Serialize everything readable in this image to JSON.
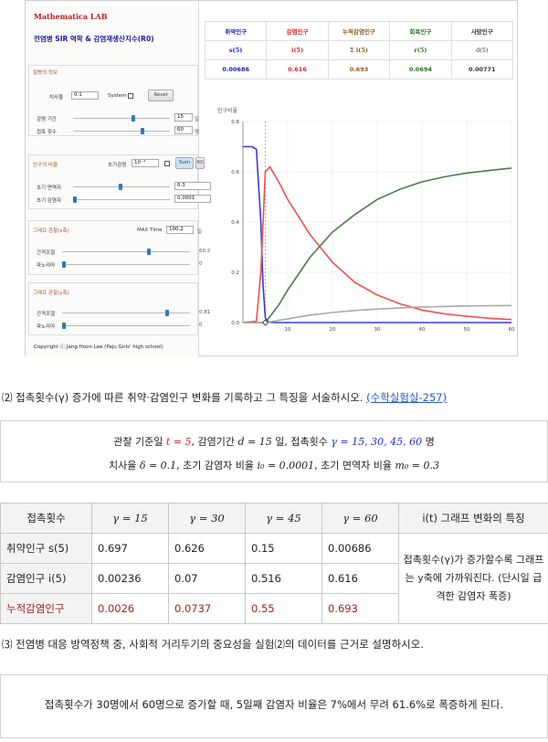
{
  "app": {
    "brand": "Mathematica LAB",
    "title": "전염병 SIR 역학 & 감염재생산지수(R0)",
    "disease_section": {
      "title": "질병의 정보",
      "fatality_label": "치사율",
      "fatality_value": "0.1",
      "system_label": "System",
      "reset_label": "Reset",
      "infection_period_label": "감염 기간",
      "infection_period_value": "15",
      "infection_period_unit": "일",
      "contact_label": "접촉 횟수",
      "contact_value": "60",
      "contact_unit": "명"
    },
    "population_section": {
      "title": "인구의 비율",
      "initial_infection_label": "초기감염",
      "initial_infection_select": "10⁻⁴",
      "sum_button": "Sum",
      "r0_button": "R0",
      "immune_label": "초기 면역자",
      "immune_value": "0.3",
      "infected_label": "초기 감염자",
      "infected_value": "0.0001"
    },
    "x_section": {
      "title": "그래프 관찰(x축)",
      "max_time_label": "MAX Time",
      "max_time_value": "100.2",
      "max_time_unit": "일",
      "interval_label": "간격조절",
      "interval_value": "60.2",
      "pan_label": "파노라마",
      "pan_value": "0"
    },
    "y_section": {
      "title": "그래프 관찰(y축)",
      "interval_label": "간격조절",
      "interval_value": "0.81",
      "pan_label": "파노라마",
      "pan_value": "0"
    },
    "copyright": "Copyright ⓒ Jang Hoon Lee (Paju Girls' high school)",
    "results": {
      "headers": [
        "취약인구",
        "감염인구",
        "누적감염인구",
        "회복인구",
        "사망인구"
      ],
      "symbols": [
        "s(5)",
        "i(5)",
        "Σ i(5)",
        "r(5)",
        "d(5)"
      ],
      "values": [
        "0.00686",
        "0.616",
        "0.693",
        "0.0694",
        "0.00771"
      ]
    }
  },
  "chart_data": {
    "type": "line",
    "ylabel": "인구비율",
    "xlim": [
      0,
      60
    ],
    "ylim": [
      0,
      0.8
    ],
    "x_ticks": [
      10,
      20,
      30,
      40,
      50,
      60
    ],
    "y_ticks": [
      0.0,
      0.2,
      0.4,
      0.6,
      0.8
    ],
    "marker_t": 5,
    "series": [
      {
        "color": "#3a3ad8",
        "x": [
          0,
          2,
          3,
          4,
          4.5,
          5,
          5.5,
          6,
          7,
          60
        ],
        "y": [
          0.7,
          0.7,
          0.69,
          0.4,
          0.15,
          0.02,
          0.005,
          0.002,
          0.0,
          0.0
        ]
      },
      {
        "color": "#f0504c",
        "x": [
          0,
          3,
          4,
          5,
          6,
          8,
          10,
          15,
          20,
          25,
          30,
          35,
          40,
          45,
          50,
          55,
          60
        ],
        "y": [
          0,
          0.005,
          0.2,
          0.6,
          0.62,
          0.56,
          0.49,
          0.35,
          0.24,
          0.16,
          0.11,
          0.075,
          0.05,
          0.035,
          0.025,
          0.017,
          0.012
        ]
      },
      {
        "color": "#4c7a4c",
        "x": [
          0,
          5,
          8,
          10,
          15,
          20,
          25,
          30,
          35,
          40,
          45,
          50,
          55,
          60
        ],
        "y": [
          0,
          0.0,
          0.07,
          0.13,
          0.26,
          0.36,
          0.43,
          0.49,
          0.53,
          0.56,
          0.58,
          0.595,
          0.605,
          0.615
        ]
      },
      {
        "color": "#a9a9a9",
        "x": [
          0,
          5,
          10,
          15,
          20,
          25,
          30,
          35,
          40,
          45,
          50,
          55,
          60
        ],
        "y": [
          0,
          0.0,
          0.015,
          0.03,
          0.04,
          0.048,
          0.054,
          0.058,
          0.062,
          0.064,
          0.066,
          0.067,
          0.068
        ]
      }
    ]
  },
  "question2": {
    "number": "⑵",
    "text": "접촉횟수(γ) 증가에 따른 취약·감염인구 변화를 기록하고 그 특징을 서술하시오.",
    "link": "(수학실험실-257)"
  },
  "conditions": {
    "line1_pre": "관찰 기준일",
    "t_value": "t = 5",
    "line1_mid": ", 감염기간",
    "d_value": "d = 15",
    "line1_mid2": "일, 접촉횟수",
    "gamma_values": "γ = 15, 30, 45, 60",
    "line1_post": "명",
    "line2_pre": "치사율",
    "delta_value": "δ = 0.1",
    "line2_mid": ", 초기 감염자 비율",
    "i0_value": "i₀ = 0.0001",
    "line2_mid2": ", 초기 면역자 비율",
    "m0_value": "m₀ = 0.3"
  },
  "data_table": {
    "header_first": "접촉횟수",
    "gamma_headers": [
      "γ = 15",
      "γ = 30",
      "γ = 45",
      "γ = 60"
    ],
    "feature_header": "i(t) 그래프 변화의 특징",
    "rows": [
      {
        "label": "취약인구 s(5)",
        "values": [
          "0.697",
          "0.626",
          "0.15",
          "0.00686"
        ]
      },
      {
        "label": "감염인구 i(5)",
        "values": [
          "0.00236",
          "0.07",
          "0.516",
          "0.616"
        ]
      },
      {
        "label": "누적감염인구",
        "values": [
          "0.0026",
          "0.0737",
          "0.55",
          "0.693"
        ]
      }
    ],
    "feature_text": "접촉횟수(γ)가 증가할수록 그래프는 y축에 가까워진다. (단시일 급격한 감염자 폭증)"
  },
  "question3": {
    "number": "⑶",
    "text": "전염병 대응 방역정책 중, 사회적 거리두기의 중요성을 실험⑵의 데이터를 근거로 설명하시오."
  },
  "answer": "접촉횟수가 30명에서 60명으로 증가할 때, 5일째 감염자 비율은 7%에서 무려 61.6%로 폭증하게 된다."
}
